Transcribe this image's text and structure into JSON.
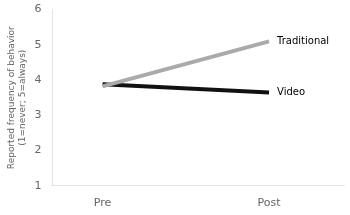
{
  "chart_data": {
    "type": "line",
    "ylabel": [
      "Reported frequency of behavior",
      "(1=never; 5=always)"
    ],
    "x": [
      0,
      1
    ],
    "xlim": [
      -0.3,
      1.45
    ],
    "xticks": [
      {
        "value": 0,
        "label": "Pre"
      },
      {
        "value": 1,
        "label": "Post"
      }
    ],
    "series": [
      {
        "name": "Traditional",
        "color": "#aaaaaa",
        "values": [
          3.82,
          5.1
        ]
      },
      {
        "name": "Video",
        "color": "#111111",
        "values": [
          3.88,
          3.65
        ]
      }
    ],
    "ylim": [
      1,
      6
    ],
    "yticks": [
      1,
      2,
      3,
      4,
      5,
      6
    ],
    "grid": false
  }
}
